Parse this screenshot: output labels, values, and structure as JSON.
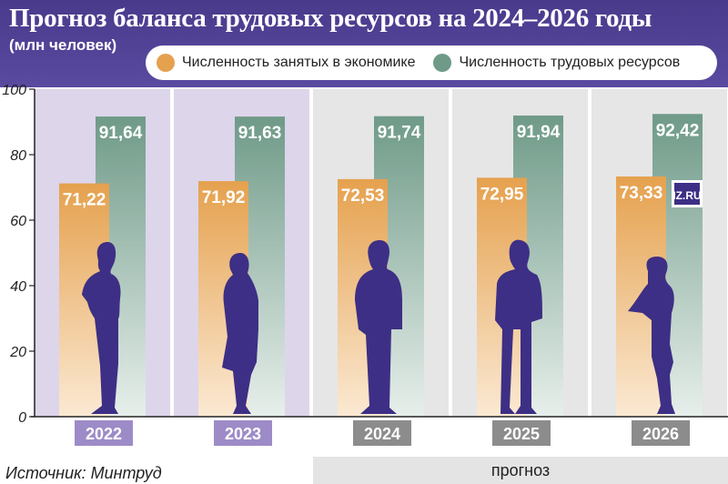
{
  "header": {
    "title": "Прогноз баланса трудовых ресурсов на 2024–2026 годы",
    "subtitle": "(млн человек)"
  },
  "legend": [
    {
      "label": "Численность занятых в экономике",
      "color": "#e5a14e"
    },
    {
      "label": "Численность трудовых ресурсов",
      "color": "#6f9a88"
    }
  ],
  "source": "Источник: Минтруд",
  "forecast_label": "прогноз",
  "watermark": "IZ.RU",
  "colors": {
    "header": "#4a3a8c",
    "actual_panel": "#ddd5ea",
    "forecast_panel": "#e6e6e6",
    "actual_year_tab": "#9d8bc8",
    "forecast_year_tab": "#8c8c8c",
    "employed": "#e5a14e",
    "resources": "#6f9a88",
    "silhouette": "#3d2f85"
  },
  "chart_data": {
    "type": "bar",
    "categories": [
      "2022",
      "2023",
      "2024",
      "2025",
      "2026"
    ],
    "forecast_categories": [
      "2024",
      "2025",
      "2026"
    ],
    "series": [
      {
        "name": "Численность занятых в экономике",
        "values": [
          71.22,
          71.92,
          72.53,
          72.95,
          73.33
        ],
        "labels": [
          "71,22",
          "71,92",
          "72,53",
          "72,95",
          "73,33"
        ]
      },
      {
        "name": "Численность трудовых ресурсов",
        "values": [
          91.64,
          91.63,
          91.74,
          91.94,
          92.42
        ],
        "labels": [
          "91,64",
          "91,63",
          "91,74",
          "91,94",
          "92,42"
        ]
      }
    ],
    "ylim": [
      0,
      100
    ],
    "yticks": [
      0,
      20,
      40,
      60,
      80,
      100
    ],
    "grid": false,
    "legend_position": "top"
  }
}
